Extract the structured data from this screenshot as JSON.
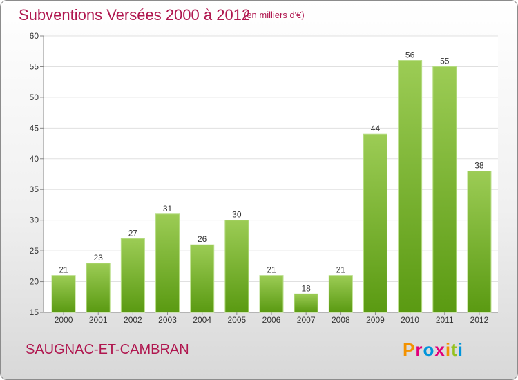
{
  "header": {
    "title": "Subventions Versées 2000 à 2012",
    "unit": "(en milliers d'€)"
  },
  "footer": {
    "commune": "SAUGNAC-ET-CAMBRAN",
    "logo_letters": [
      "P",
      "r",
      "o",
      "x",
      "i",
      "t",
      "i"
    ],
    "logo_colors": [
      "#f39200",
      "#e2007a",
      "#0095db",
      "#e2007a",
      "#f39200",
      "#95c11f",
      "#0095db"
    ]
  },
  "colors": {
    "title": "#b0174f",
    "bar_top": "#9ccc55",
    "bar_bottom": "#5a9a12",
    "grid": "#e0e0e0"
  },
  "chart_data": {
    "type": "bar",
    "categories": [
      "2000",
      "2001",
      "2002",
      "2003",
      "2004",
      "2005",
      "2006",
      "2007",
      "2008",
      "2009",
      "2010",
      "2011",
      "2012"
    ],
    "values": [
      21,
      23,
      27,
      31,
      26,
      30,
      21,
      18,
      21,
      44,
      56,
      55,
      38
    ],
    "ylim": [
      15,
      60
    ],
    "yticks": [
      15,
      20,
      25,
      30,
      35,
      40,
      45,
      50,
      55,
      60
    ],
    "grid": true,
    "legend": "none"
  }
}
